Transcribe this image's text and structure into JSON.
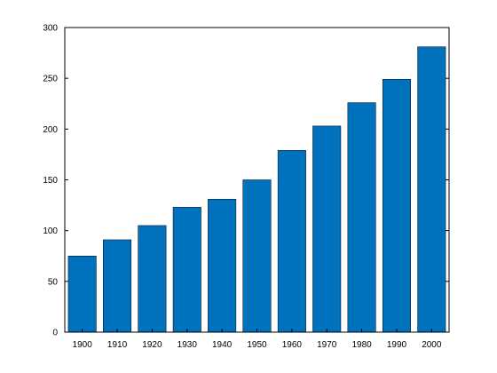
{
  "chart_data": {
    "type": "bar",
    "categories": [
      "1900",
      "1910",
      "1920",
      "1930",
      "1940",
      "1950",
      "1960",
      "1970",
      "1980",
      "1990",
      "2000"
    ],
    "values": [
      75,
      91,
      105,
      123,
      131,
      150,
      179,
      203,
      226,
      249,
      281
    ],
    "title": "",
    "xlabel": "",
    "ylabel": "",
    "ylim": [
      0,
      300
    ],
    "yticks": [
      0,
      50,
      100,
      150,
      200,
      250,
      300
    ],
    "grid": false,
    "bar_color": "#0072BD"
  }
}
